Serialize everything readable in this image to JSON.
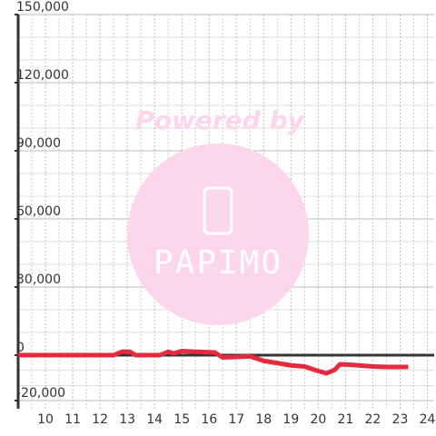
{
  "chart_data": {
    "type": "line",
    "x": [
      9,
      12.5,
      12.8,
      13.1,
      13.3,
      14.2,
      14.5,
      14.7,
      15,
      15.5,
      16.2,
      16.5,
      17,
      17.5,
      18,
      18.5,
      19,
      19.5,
      20,
      20.3,
      20.6,
      20.8,
      21.5,
      22,
      22.5,
      23.3
    ],
    "series": [
      {
        "color": "#e8283c",
        "values": [
          0,
          0,
          1500,
          1500,
          0,
          0,
          1500,
          800,
          1800,
          1500,
          1200,
          -1000,
          -800,
          -500,
          -2500,
          -3500,
          -4500,
          -5000,
          -7000,
          -8000,
          -6500,
          -4000,
          -4500,
          -5000,
          -5200,
          -5200
        ]
      }
    ],
    "xlim": [
      9,
      24.25
    ],
    "ylim": [
      -23600,
      150000
    ],
    "xticks": [
      10,
      11,
      12,
      13,
      14,
      15,
      16,
      17,
      18,
      19,
      20,
      21,
      22,
      23,
      24
    ],
    "yticks": [
      {
        "value": -20000,
        "label": "-20,000"
      },
      0,
      {
        "value": 30000,
        "label": "30,000"
      },
      {
        "value": 60000,
        "label": "60,000"
      },
      {
        "value": 90000,
        "label": "90,000"
      },
      {
        "value": 120000,
        "label": "120,000"
      },
      {
        "value": 150000,
        "label": "150,000"
      }
    ],
    "grid": true
  },
  "watermark": {
    "text": "Powered by",
    "logo": "PAPIMO"
  }
}
